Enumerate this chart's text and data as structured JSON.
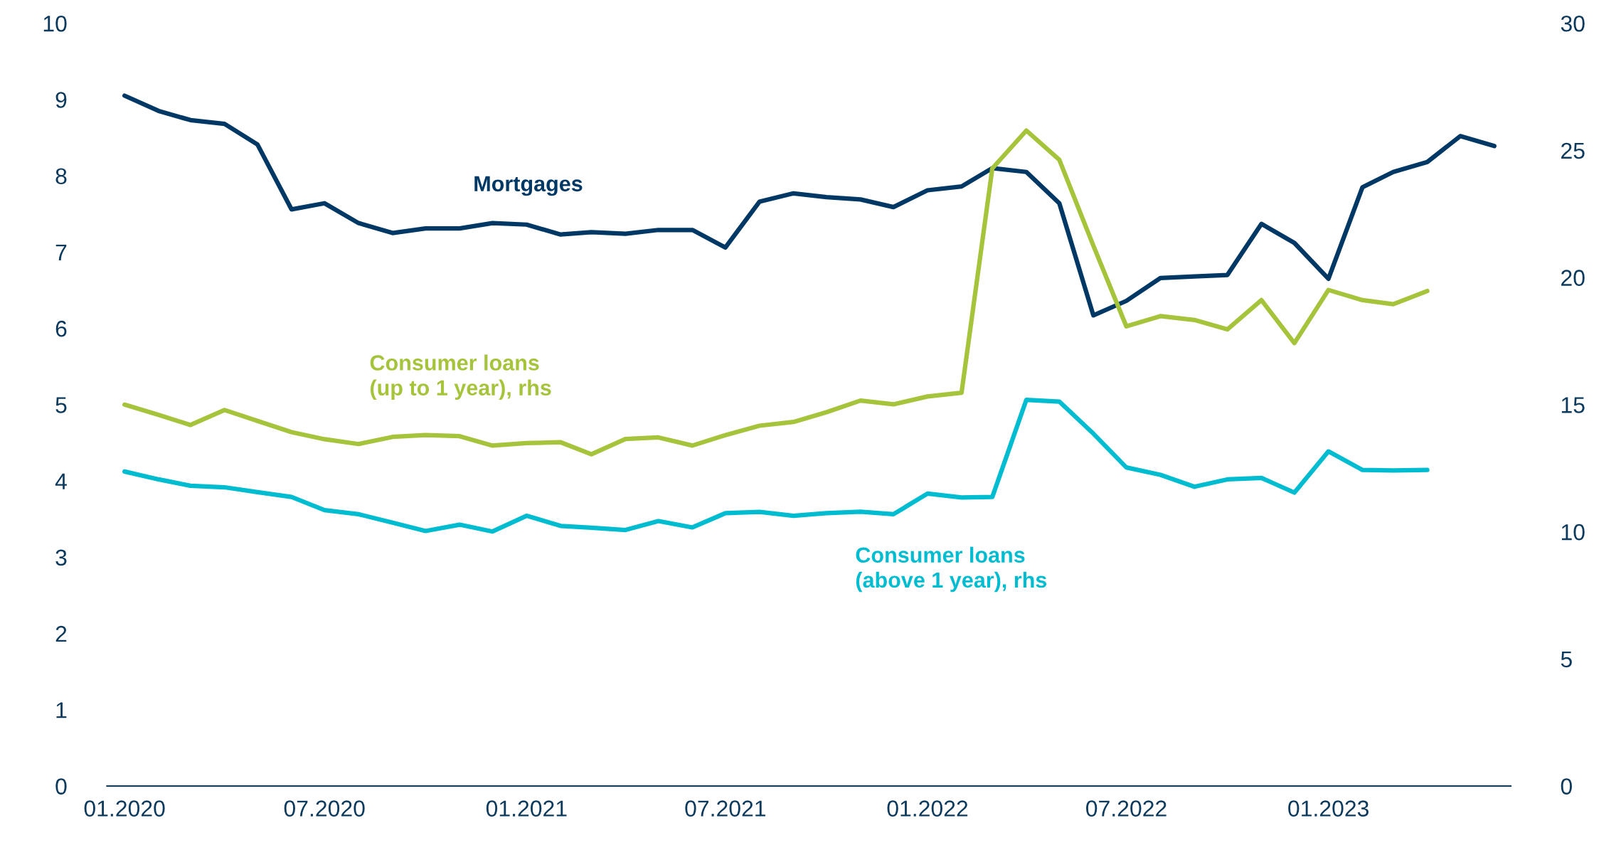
{
  "chart_data": {
    "type": "line",
    "x": [
      "2020-01",
      "2020-02",
      "2020-03",
      "2020-04",
      "2020-05",
      "2020-06",
      "2020-07",
      "2020-08",
      "2020-09",
      "2020-10",
      "2020-11",
      "2020-12",
      "2021-01",
      "2021-02",
      "2021-03",
      "2021-04",
      "2021-05",
      "2021-06",
      "2021-07",
      "2021-08",
      "2021-09",
      "2021-10",
      "2021-11",
      "2021-12",
      "2022-01",
      "2022-02",
      "2022-03",
      "2022-04",
      "2022-05",
      "2022-06",
      "2022-07",
      "2022-08",
      "2022-09",
      "2022-10",
      "2022-11",
      "2022-12",
      "2023-01",
      "2023-02",
      "2023-03",
      "2023-04",
      "2023-05",
      "2023-06"
    ],
    "series": [
      {
        "name": "Mortgages",
        "color": "#003865",
        "values": [
          9.05,
          8.85,
          8.73,
          8.68,
          8.41,
          7.56,
          7.64,
          7.38,
          7.25,
          7.31,
          7.31,
          7.38,
          7.36,
          7.23,
          7.26,
          7.24,
          7.29,
          7.29,
          7.06,
          7.66,
          7.77,
          7.72,
          7.69,
          7.59,
          7.81,
          7.86,
          8.1,
          8.05,
          7.64,
          6.17,
          6.36,
          6.66,
          6.68,
          6.7,
          7.37,
          7.12,
          6.65,
          7.85,
          8.05,
          8.18,
          8.52,
          8.39
        ]
      },
      {
        "name": "Consumer loans\n(up to 1 year), rhs",
        "color": "#a5c33b",
        "axis": "y2",
        "values": [
          15.0,
          14.6,
          14.2,
          14.79,
          14.36,
          13.92,
          13.64,
          13.45,
          13.73,
          13.8,
          13.76,
          13.39,
          13.49,
          13.52,
          13.05,
          13.65,
          13.71,
          13.39,
          13.8,
          14.17,
          14.32,
          14.7,
          15.16,
          15.01,
          15.32,
          15.47,
          24.29,
          25.78,
          24.63,
          21.25,
          18.08,
          18.48,
          18.33,
          17.96,
          19.11,
          17.42,
          19.51,
          19.11,
          18.95,
          19.47,
          null,
          null
        ]
      },
      {
        "name": "Consumer loans\n(above 1 year), rhs",
        "color": "#00bcd0",
        "axis": "y2",
        "values": [
          12.37,
          12.06,
          11.81,
          11.75,
          11.56,
          11.37,
          10.85,
          10.69,
          10.36,
          10.03,
          10.28,
          10.01,
          10.63,
          10.23,
          10.16,
          10.07,
          10.42,
          10.17,
          10.73,
          10.78,
          10.63,
          10.73,
          10.79,
          10.69,
          11.5,
          11.35,
          11.37,
          15.19,
          15.12,
          13.86,
          12.53,
          12.24,
          11.77,
          12.06,
          12.12,
          11.54,
          13.16,
          12.43,
          12.41,
          12.43,
          null,
          null
        ]
      }
    ],
    "xlim": [
      "2019-12-16",
      "2023-06-16"
    ],
    "xticks": [
      {
        "value": "2020-01",
        "label": "01.2020"
      },
      {
        "value": "2020-07",
        "label": "07.2020"
      },
      {
        "value": "2021-01",
        "label": "01.2021"
      },
      {
        "value": "2021-07",
        "label": "07.2021"
      },
      {
        "value": "2022-01",
        "label": "01.2022"
      },
      {
        "value": "2022-07",
        "label": "07.2022"
      },
      {
        "value": "2023-01",
        "label": "01.2023"
      }
    ],
    "ylim": [
      0,
      10
    ],
    "yticks": [
      0,
      1,
      2,
      3,
      4,
      5,
      6,
      7,
      8,
      9,
      10
    ],
    "y2lim": [
      0,
      30
    ],
    "y2ticks": [
      0,
      5,
      10,
      15,
      20,
      25,
      30
    ],
    "grid": false,
    "legend": false,
    "line_style": "solid",
    "marker": "none"
  }
}
